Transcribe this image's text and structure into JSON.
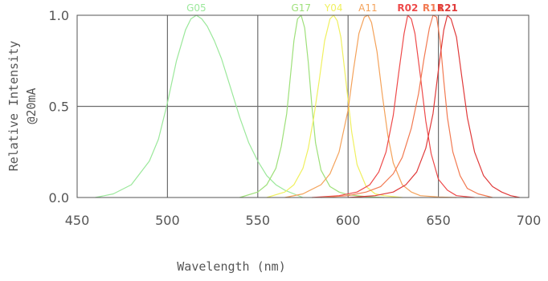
{
  "chart_data": {
    "type": "line",
    "title": "",
    "xlabel": "Wavelength (nm)",
    "ylabel_line1": "Relative Intensity",
    "ylabel_line2": "@20mA",
    "xlim": [
      450,
      700
    ],
    "ylim": [
      0,
      1.0
    ],
    "x_ticks": [
      450,
      500,
      550,
      600,
      650,
      700
    ],
    "x_tick_labels": [
      "450",
      "500",
      "550",
      "600",
      "650",
      "700"
    ],
    "y_ticks": [
      0,
      0.5,
      1.0
    ],
    "y_tick_labels": [
      "0.0",
      "0.5",
      "1.0"
    ],
    "grid": true,
    "legend": "labels at peaks",
    "series": [
      {
        "name": "G05",
        "color": "#9be89b",
        "bold": false,
        "x": [
          460,
          470,
          480,
          490,
          495,
          500,
          505,
          510,
          513,
          516,
          519,
          522,
          526,
          530,
          535,
          540,
          545,
          550,
          555,
          560,
          565,
          570,
          575
        ],
        "y": [
          0.0,
          0.02,
          0.07,
          0.2,
          0.32,
          0.52,
          0.75,
          0.92,
          0.98,
          1.0,
          0.98,
          0.94,
          0.86,
          0.76,
          0.6,
          0.44,
          0.3,
          0.2,
          0.12,
          0.07,
          0.04,
          0.02,
          0.0
        ]
      },
      {
        "name": "G17",
        "color": "#9ee07a",
        "bold": false,
        "x": [
          540,
          550,
          555,
          560,
          563,
          566,
          568,
          570,
          572,
          574,
          576,
          578,
          580,
          582,
          585,
          590,
          595,
          600,
          610,
          620
        ],
        "y": [
          0.0,
          0.03,
          0.07,
          0.16,
          0.28,
          0.46,
          0.66,
          0.86,
          0.98,
          1.0,
          0.93,
          0.74,
          0.5,
          0.3,
          0.15,
          0.06,
          0.03,
          0.015,
          0.005,
          0.0
        ]
      },
      {
        "name": "Y04",
        "color": "#f0f060",
        "bold": false,
        "x": [
          555,
          565,
          570,
          575,
          578,
          581,
          584,
          587,
          590,
          592,
          594,
          596,
          599,
          602,
          605,
          610,
          615,
          620,
          630
        ],
        "y": [
          0.0,
          0.03,
          0.07,
          0.16,
          0.27,
          0.44,
          0.64,
          0.86,
          0.98,
          1.0,
          0.97,
          0.88,
          0.62,
          0.36,
          0.18,
          0.06,
          0.02,
          0.01,
          0.0
        ]
      },
      {
        "name": "A11",
        "color": "#f4a25a",
        "bold": false,
        "x": [
          565,
          575,
          585,
          590,
          595,
          600,
          603,
          606,
          609,
          611,
          613,
          616,
          619,
          622,
          625,
          630,
          635,
          640,
          650,
          660
        ],
        "y": [
          0.0,
          0.02,
          0.07,
          0.13,
          0.25,
          0.48,
          0.7,
          0.9,
          0.99,
          1.0,
          0.96,
          0.8,
          0.56,
          0.34,
          0.19,
          0.07,
          0.03,
          0.01,
          0.003,
          0.0
        ]
      },
      {
        "name": "R02",
        "color": "#ee4a4a",
        "bold": true,
        "x": [
          580,
          595,
          605,
          612,
          617,
          621,
          625,
          628,
          631,
          633,
          635,
          637,
          640,
          643,
          646,
          650,
          655,
          660,
          670
        ],
        "y": [
          0.0,
          0.01,
          0.03,
          0.07,
          0.14,
          0.25,
          0.45,
          0.68,
          0.9,
          1.0,
          0.98,
          0.9,
          0.67,
          0.42,
          0.24,
          0.1,
          0.04,
          0.01,
          0.0
        ]
      },
      {
        "name": "R11",
        "color": "#f27a52",
        "bold": true,
        "x": [
          585,
          600,
          610,
          618,
          625,
          630,
          635,
          639,
          642,
          645,
          647,
          649,
          651,
          653,
          655,
          658,
          662,
          666,
          672,
          680
        ],
        "y": [
          0.0,
          0.01,
          0.03,
          0.06,
          0.13,
          0.22,
          0.38,
          0.57,
          0.76,
          0.93,
          1.0,
          0.99,
          0.86,
          0.64,
          0.44,
          0.25,
          0.12,
          0.05,
          0.02,
          0.0
        ]
      },
      {
        "name": "R21",
        "color": "#e03a3a",
        "bold": true,
        "x": [
          600,
          615,
          625,
          632,
          638,
          643,
          647,
          650,
          653,
          655,
          657,
          660,
          663,
          666,
          670,
          675,
          680,
          685,
          690,
          695
        ],
        "y": [
          0.0,
          0.01,
          0.03,
          0.07,
          0.14,
          0.27,
          0.46,
          0.7,
          0.92,
          1.0,
          0.98,
          0.88,
          0.66,
          0.44,
          0.25,
          0.12,
          0.06,
          0.03,
          0.01,
          0.0
        ]
      }
    ]
  }
}
